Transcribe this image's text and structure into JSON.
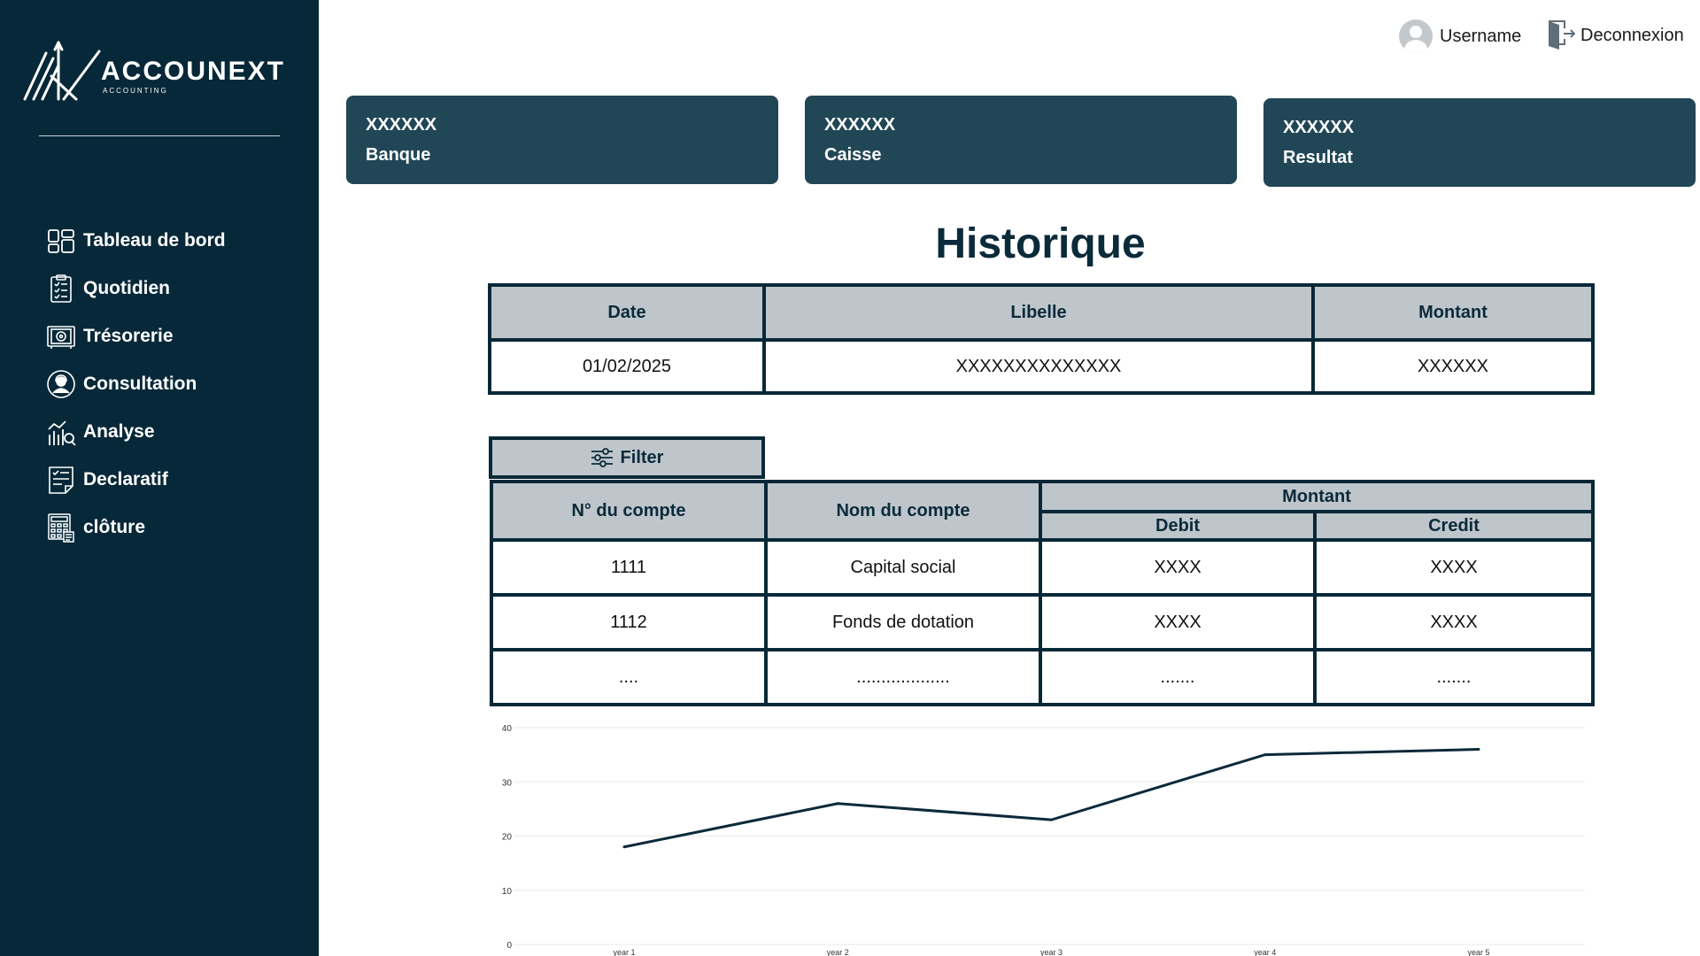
{
  "brand": {
    "name": "ACCOUNEXT",
    "subtitle": "ACCOUNTING"
  },
  "sidebar": {
    "items": [
      {
        "label": "Tableau de bord",
        "icon": "dashboard-icon"
      },
      {
        "label": "Quotidien",
        "icon": "clipboard-icon"
      },
      {
        "label": "Trésorerie",
        "icon": "safe-icon"
      },
      {
        "label": "Consultation",
        "icon": "user-support-icon"
      },
      {
        "label": "Analyse",
        "icon": "analytics-icon"
      },
      {
        "label": "Declaratif",
        "icon": "checklist-icon"
      },
      {
        "label": "clôture",
        "icon": "calculator-icon"
      }
    ]
  },
  "header": {
    "username": "Username",
    "logout_label": "Deconnexion"
  },
  "cards": [
    {
      "value": "XXXXXX",
      "label": "Banque"
    },
    {
      "value": "XXXXXX",
      "label": "Caisse"
    },
    {
      "value": "XXXXXX",
      "label": "Resultat"
    }
  ],
  "history": {
    "title": "Historique",
    "columns": [
      "Date",
      "Libelle",
      "Montant"
    ],
    "rows": [
      [
        "01/02/2025",
        "XXXXXXXXXXXXXX",
        "XXXXXX"
      ]
    ]
  },
  "accounts": {
    "filter_label": "Filter",
    "columns": {
      "number": "N° du compte",
      "name": "Nom du compte",
      "amount": "Montant",
      "debit": "Debit",
      "credit": "Credit"
    },
    "rows": [
      [
        "1111",
        "Capital social",
        "XXXX",
        "XXXX"
      ],
      [
        "1112",
        "Fonds de dotation",
        "XXXX",
        "XXXX"
      ],
      [
        "....",
        "...................",
        ".......",
        "......."
      ]
    ]
  },
  "colors": {
    "sidebar_bg": "#072838",
    "card_bg": "#214756",
    "header_cell": "#bfc6cb",
    "line": "#0b2a3a"
  },
  "chart_data": {
    "type": "line",
    "categories": [
      "year 1",
      "year 2",
      "year 3",
      "year 4",
      "year 5"
    ],
    "series": [
      {
        "values": [
          18,
          26,
          23,
          35,
          36
        ]
      }
    ],
    "ylim": [
      0,
      40
    ],
    "yticks": [
      0,
      10,
      20,
      30,
      40
    ],
    "grid": true
  }
}
